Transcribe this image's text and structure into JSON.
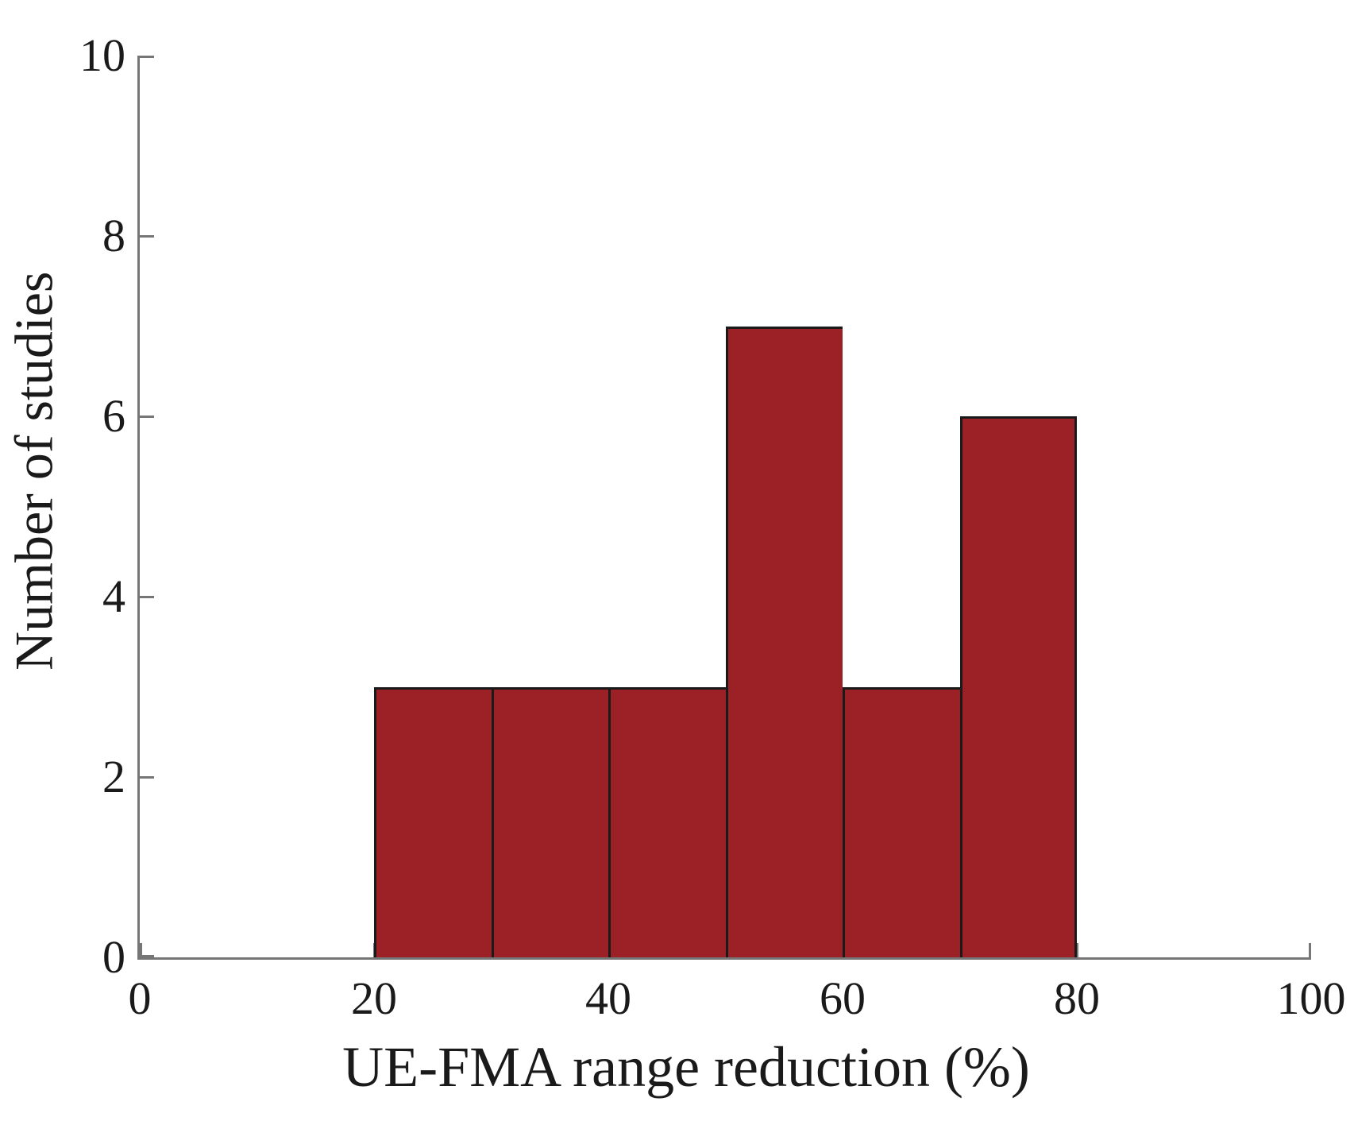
{
  "figure": {
    "background": "#ffffff"
  },
  "chart_data": {
    "type": "bar",
    "subtype": "histogram",
    "title": "",
    "xlabel": "UE-FMA range reduction (%)",
    "ylabel": "Number of studies",
    "xlim": [
      0,
      100
    ],
    "ylim": [
      0,
      10
    ],
    "x_ticks": [
      0,
      20,
      40,
      60,
      80,
      100
    ],
    "y_ticks": [
      0,
      2,
      4,
      6,
      8,
      10
    ],
    "bin_width": 10,
    "bins": [
      {
        "range": [
          20,
          30
        ],
        "count": 3
      },
      {
        "range": [
          30,
          40
        ],
        "count": 3
      },
      {
        "range": [
          40,
          50
        ],
        "count": 3
      },
      {
        "range": [
          50,
          60
        ],
        "count": 7
      },
      {
        "range": [
          60,
          70
        ],
        "count": 3
      },
      {
        "range": [
          70,
          80
        ],
        "count": 6
      }
    ],
    "grid": false,
    "legend": null,
    "tick_direction": "in",
    "colors": {
      "bar_fill": "#9B2127",
      "bar_border": "#1a1a1a",
      "axis": "#767676",
      "text": "#1a1a1a"
    }
  }
}
